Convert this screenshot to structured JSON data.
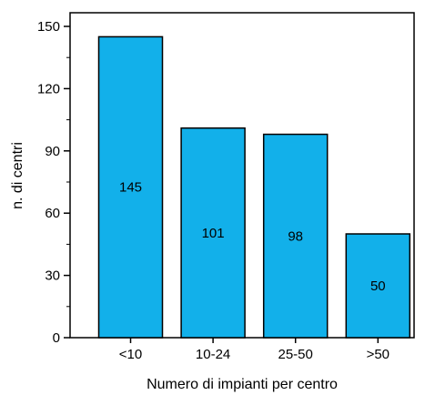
{
  "chart_data": {
    "type": "bar",
    "categories": [
      "<10",
      "10-24",
      "25-50",
      ">50"
    ],
    "values": [
      145,
      101,
      98,
      50
    ],
    "data_labels": [
      "145",
      "101",
      "98",
      "50"
    ],
    "title": "",
    "xlabel": "Numero di impianti per centro",
    "ylabel": "n. di centri",
    "ylim": [
      0,
      150
    ],
    "yticks": [
      0,
      30,
      60,
      90,
      120,
      150
    ],
    "ytick_labels": [
      "0",
      "30",
      "60",
      "90",
      "120",
      "150"
    ],
    "grid": false,
    "bar_color": "#12b0ea",
    "bar_edge_color": "#000000"
  }
}
